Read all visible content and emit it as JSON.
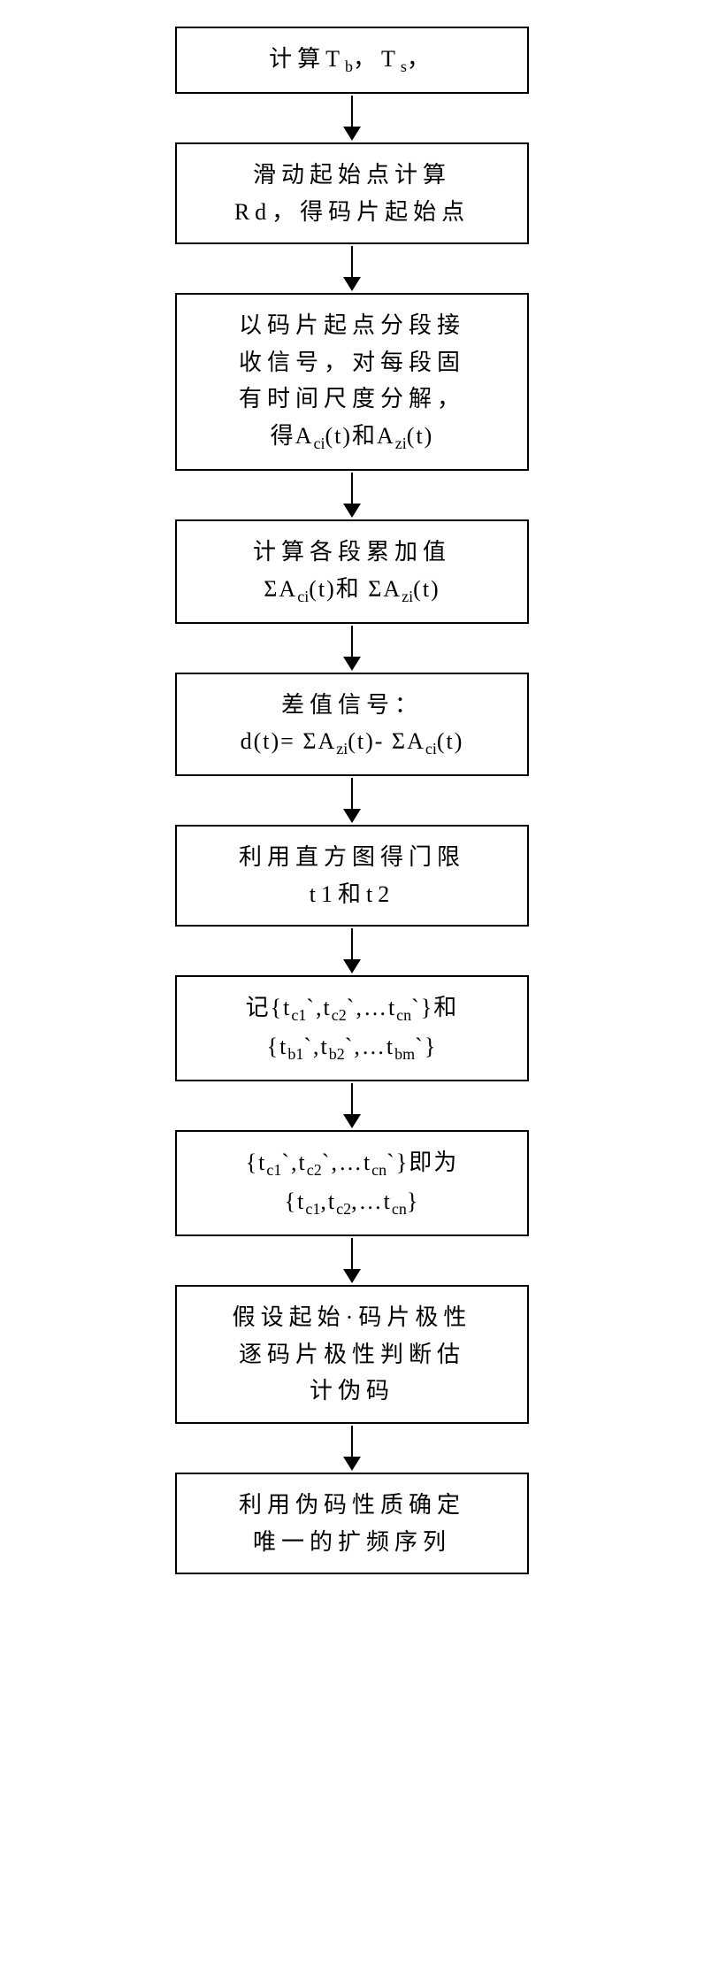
{
  "flowchart": {
    "type": "flowchart",
    "direction": "vertical",
    "background_color": "#ffffff",
    "border_color": "#000000",
    "border_width": 2.5,
    "text_color": "#000000",
    "font_size": 26,
    "font_family": "SimSun",
    "arrow_length": 35,
    "arrow_head_size": 16,
    "box_min_width": 400,
    "box_max_width": 520,
    "nodes": [
      {
        "id": "n1",
        "lines": [
          {
            "type": "composite",
            "parts": [
              {
                "text": "计算T"
              },
              {
                "text": "b",
                "sub": true
              },
              {
                "text": "，T"
              },
              {
                "text": "s",
                "sub": true
              },
              {
                "text": "，"
              }
            ]
          }
        ]
      },
      {
        "id": "n2",
        "lines": [
          {
            "type": "text",
            "text": "滑动起始点计算"
          },
          {
            "type": "text",
            "text": "Rd，得码片起始点"
          }
        ]
      },
      {
        "id": "n3",
        "lines": [
          {
            "type": "text",
            "text": "以码片起点分段接"
          },
          {
            "type": "text",
            "text": "收信号，对每段固"
          },
          {
            "type": "text",
            "text": "有时间尺度分解，"
          },
          {
            "type": "composite",
            "parts": [
              {
                "text": "得A",
                "cls": "formula"
              },
              {
                "text": "ci",
                "sub": true
              },
              {
                "text": "(t)和A",
                "cls": "formula"
              },
              {
                "text": "zi",
                "sub": true
              },
              {
                "text": "(t)",
                "cls": "formula"
              }
            ]
          }
        ]
      },
      {
        "id": "n4",
        "lines": [
          {
            "type": "text",
            "text": "计算各段累加值"
          },
          {
            "type": "composite",
            "parts": [
              {
                "text": "ΣA",
                "cls": "formula"
              },
              {
                "text": "ci",
                "sub": true
              },
              {
                "text": "(t)和 ΣA",
                "cls": "formula"
              },
              {
                "text": "zi",
                "sub": true
              },
              {
                "text": "(t)",
                "cls": "formula"
              }
            ]
          }
        ]
      },
      {
        "id": "n5",
        "lines": [
          {
            "type": "text",
            "text": "差值信号："
          },
          {
            "type": "composite",
            "cls": "nowrap",
            "parts": [
              {
                "text": "d(t)= ΣA",
                "cls": "formula"
              },
              {
                "text": "zi",
                "sub": true
              },
              {
                "text": "(t)- ΣA",
                "cls": "formula"
              },
              {
                "text": "ci",
                "sub": true
              },
              {
                "text": "(t)",
                "cls": "formula"
              }
            ]
          }
        ]
      },
      {
        "id": "n6",
        "lines": [
          {
            "type": "text",
            "text": "利用直方图得门限"
          },
          {
            "type": "text",
            "text": "t1和t2"
          }
        ]
      },
      {
        "id": "n7",
        "lines": [
          {
            "type": "composite",
            "parts": [
              {
                "text": "记{t",
                "cls": "formula"
              },
              {
                "text": "c1",
                "sub": true
              },
              {
                "text": "`,t",
                "cls": "formula"
              },
              {
                "text": "c2",
                "sub": true
              },
              {
                "text": "`,…t",
                "cls": "formula"
              },
              {
                "text": "cn",
                "sub": true
              },
              {
                "text": "`}和",
                "cls": "formula"
              }
            ]
          },
          {
            "type": "composite",
            "parts": [
              {
                "text": "{t",
                "cls": "formula"
              },
              {
                "text": "b1",
                "sub": true
              },
              {
                "text": "`,t",
                "cls": "formula"
              },
              {
                "text": "b2",
                "sub": true
              },
              {
                "text": "`,…t",
                "cls": "formula"
              },
              {
                "text": "bm",
                "sub": true
              },
              {
                "text": "`}",
                "cls": "formula"
              }
            ]
          }
        ]
      },
      {
        "id": "n8",
        "lines": [
          {
            "type": "composite",
            "parts": [
              {
                "text": "{t",
                "cls": "formula"
              },
              {
                "text": "c1",
                "sub": true
              },
              {
                "text": "`,t",
                "cls": "formula"
              },
              {
                "text": "c2",
                "sub": true
              },
              {
                "text": "`,…t",
                "cls": "formula"
              },
              {
                "text": "cn",
                "sub": true
              },
              {
                "text": "`}即为",
                "cls": "formula"
              }
            ]
          },
          {
            "type": "composite",
            "parts": [
              {
                "text": "{t",
                "cls": "formula"
              },
              {
                "text": "c1",
                "sub": true
              },
              {
                "text": ",t",
                "cls": "formula"
              },
              {
                "text": "c2",
                "sub": true
              },
              {
                "text": ",…t",
                "cls": "formula"
              },
              {
                "text": "cn",
                "sub": true
              },
              {
                "text": "}",
                "cls": "formula"
              }
            ]
          }
        ]
      },
      {
        "id": "n9",
        "lines": [
          {
            "type": "text",
            "text": "假设起始·码片极性"
          },
          {
            "type": "text",
            "text": "逐码片极性判断估"
          },
          {
            "type": "text",
            "text": "计伪码"
          }
        ]
      },
      {
        "id": "n10",
        "lines": [
          {
            "type": "text",
            "text": "利用伪码性质确定"
          },
          {
            "type": "text",
            "text": "唯一的扩频序列"
          }
        ]
      }
    ]
  }
}
